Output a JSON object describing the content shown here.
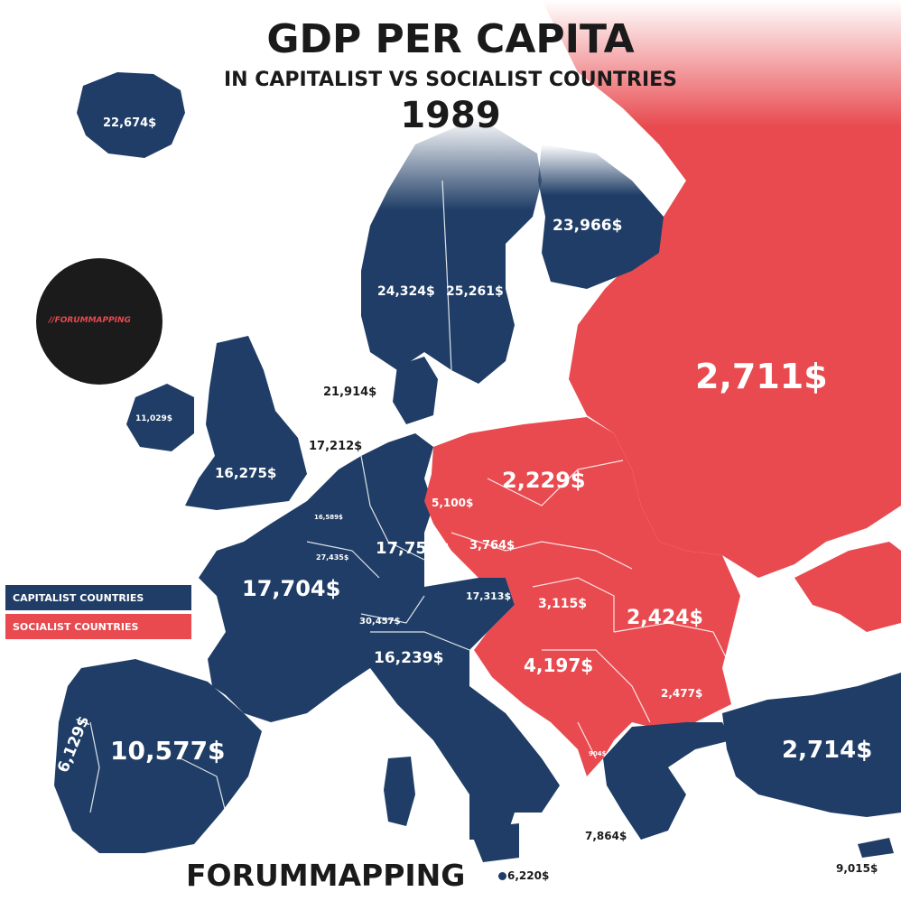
{
  "title": "GDP PER CAPITA",
  "subtitle": "IN CAPITALIST VS SOCIALIST COUNTRIES",
  "year": "1989",
  "legend": {
    "capitalist": {
      "label": "CAPITALIST COUNTRIES",
      "color": "#1f3d66"
    },
    "socialist": {
      "label": "SOCIALIST COUNTRIES",
      "color": "#e84a4f"
    }
  },
  "logo": {
    "text": "//FORUMMAPPING"
  },
  "footer": {
    "brand": "FORUMMAPPING"
  },
  "values": {
    "iceland": "22,674$",
    "finland": "23,966$",
    "norway": "24,324$",
    "sweden": "25,261$",
    "ussr": "2,711$",
    "denmark": "21,914$",
    "ireland": "11,029$",
    "uk": "16,275$",
    "netherlands": "17,212$",
    "belgium": "16,589$",
    "luxembourg": "27,435$",
    "france": "17,704$",
    "west_germany": "17,751$",
    "east_germany": "5,100$",
    "poland": "2,229$",
    "czechoslovakia": "3,764$",
    "austria": "17,313$",
    "switzerland": "30,457$",
    "hungary": "3,115$",
    "romania": "2,424$",
    "italy": "16,239$",
    "yugoslavia": "4,197$",
    "bulgaria": "2,477$",
    "albania": "904$",
    "portugal": "6,129$",
    "spain": "10,577$",
    "turkey": "2,714$",
    "greece": "7,864$",
    "malta": "6,220$",
    "cyprus": "9,015$"
  }
}
